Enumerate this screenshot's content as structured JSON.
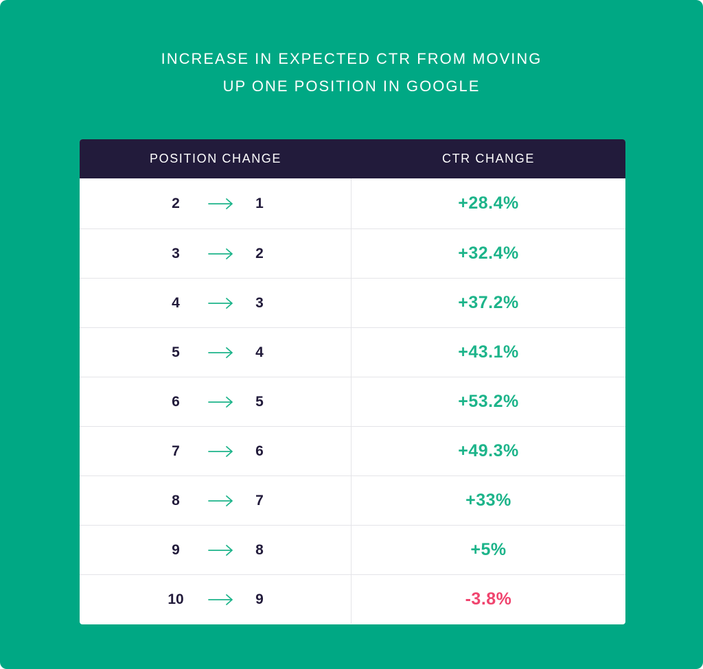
{
  "chart_data": {
    "type": "table",
    "title_lines": [
      "INCREASE IN EXPECTED CTR FROM MOVING",
      "UP ONE POSITION IN GOOGLE"
    ],
    "columns": [
      "POSITION CHANGE",
      "CTR CHANGE"
    ],
    "rows": [
      {
        "from": "2",
        "to": "1",
        "ctr": "+28.4%",
        "value": 28.4
      },
      {
        "from": "3",
        "to": "2",
        "ctr": "+32.4%",
        "value": 32.4
      },
      {
        "from": "4",
        "to": "3",
        "ctr": "+37.2%",
        "value": 37.2
      },
      {
        "from": "5",
        "to": "4",
        "ctr": "+43.1%",
        "value": 43.1
      },
      {
        "from": "6",
        "to": "5",
        "ctr": "+53.2%",
        "value": 53.2
      },
      {
        "from": "7",
        "to": "6",
        "ctr": "+49.3%",
        "value": 49.3
      },
      {
        "from": "8",
        "to": "7",
        "ctr": "+33%",
        "value": 33
      },
      {
        "from": "9",
        "to": "8",
        "ctr": "+5%",
        "value": 5
      },
      {
        "from": "10",
        "to": "9",
        "ctr": "-3.8%",
        "value": -3.8
      }
    ]
  },
  "colors": {
    "background": "#00a884",
    "header": "#221b3b",
    "positive": "#1db48a",
    "negative": "#f0446e",
    "position_text": "#221b3b",
    "arrow": "#1db48a"
  }
}
